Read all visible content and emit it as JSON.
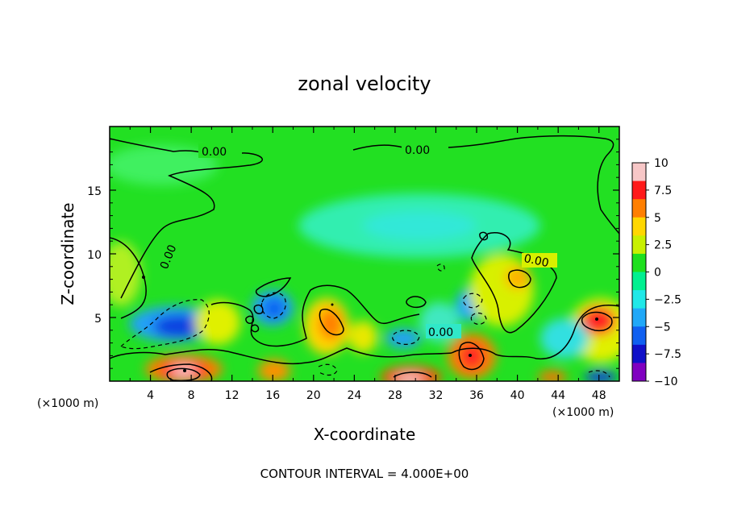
{
  "chart_data": {
    "type": "heatmap",
    "title": "zonal velocity",
    "xlabel": "X-coordinate",
    "ylabel": "Z-coordinate",
    "x_unit": "(×1000 m)",
    "x_unit_right": "(×1000 m)",
    "xlim": [
      0,
      50
    ],
    "ylim": [
      0,
      20
    ],
    "x_ticks": [
      4,
      8,
      12,
      16,
      20,
      24,
      28,
      32,
      36,
      40,
      44,
      48
    ],
    "y_ticks": [
      5,
      10,
      15
    ],
    "colorbar": {
      "ticks": [
        10,
        7.5,
        5,
        2.5,
        0,
        -2.5,
        -5,
        -7.5,
        -10
      ],
      "tick_labels": [
        "10",
        "7.5",
        "5",
        "2.5",
        "0",
        "−2.5",
        "−5",
        "−7.5",
        "−10"
      ],
      "colors": [
        "#f7c7c7",
        "#ff1a1a",
        "#ff7f00",
        "#ffd700",
        "#c8f000",
        "#1ee01e",
        "#00f090",
        "#20e8e8",
        "#20a8f8",
        "#1060f0",
        "#1010c8",
        "#8000c0"
      ]
    },
    "contour_interval_text": "CONTOUR INTERVAL = 4.000E+00",
    "contour_labels": [
      "0.00",
      "0.00",
      "0.00",
      "0.00",
      "0.00"
    ],
    "features": [
      {
        "x": 6,
        "z": 3.5,
        "value": -8
      },
      {
        "x": 16,
        "z": 5.5,
        "value": -6
      },
      {
        "x": 8,
        "z": 0.8,
        "value": 10
      },
      {
        "x": 29.5,
        "z": 0.3,
        "value": 10
      },
      {
        "x": 35,
        "z": 2,
        "value": 7
      },
      {
        "x": 48,
        "z": 5,
        "value": 8
      },
      {
        "x": 21.5,
        "z": 5,
        "value": 5
      },
      {
        "x": 40.5,
        "z": 8,
        "value": 4
      },
      {
        "x": 29,
        "z": 13,
        "value": -2.5
      }
    ]
  }
}
